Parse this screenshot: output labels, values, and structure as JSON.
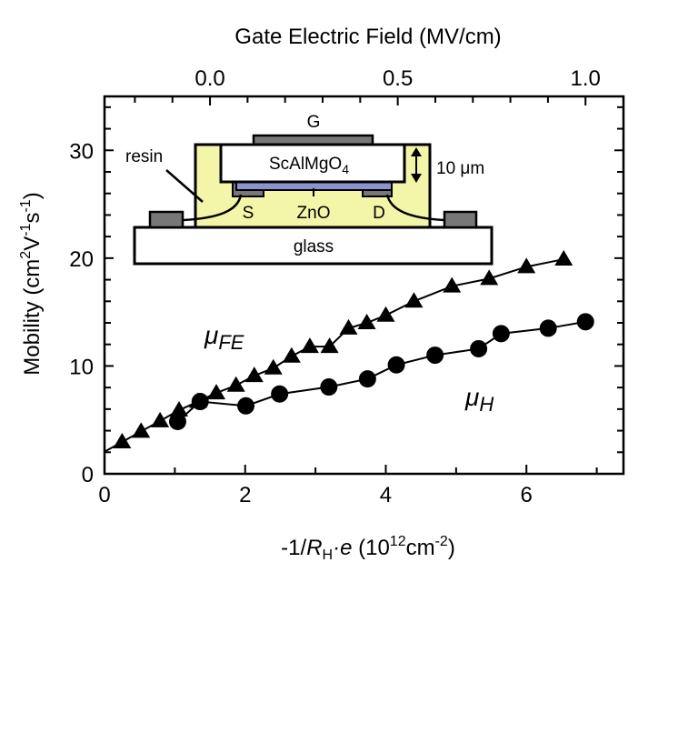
{
  "chart_data": {
    "type": "line",
    "xlabel": {
      "prefix": "-1/",
      "r": "R",
      "r_sub": "H",
      "dot_e": "·e",
      "unit_open": " (10",
      "exp1": "12",
      "unit_mid": "cm",
      "exp2": "-2",
      "unit_close": ")"
    },
    "ylabel": {
      "main": "Mobility (cm",
      "e1": "2",
      "v": "V",
      "e2": "-1",
      "s": "s",
      "e3": "-1",
      "close": ")"
    },
    "top_axis_label": "Gate Electric Field (MV/cm)",
    "xlim": [
      0,
      7.38
    ],
    "ylim": [
      0,
      35
    ],
    "x_ticks": [
      "0",
      "2",
      "4",
      "6"
    ],
    "x_tick_values": [
      0,
      2,
      4,
      6
    ],
    "x_minor_step": 1,
    "y_ticks": [
      "0",
      "10",
      "20",
      "30"
    ],
    "y_tick_values": [
      0,
      10,
      20,
      30
    ],
    "y_minor_step": 2,
    "top_axis": {
      "ticks": [
        "0.0",
        "0.5",
        "1.0"
      ],
      "tick_values": [
        0.0,
        0.5,
        1.0
      ],
      "minor_step": 0.1,
      "bottom_x_at_zero": 1.5,
      "bottom_x_per_unit": 5.34
    },
    "grid": false,
    "legend": "none",
    "series": [
      {
        "name": "μFE",
        "label_mu": "μ",
        "label_sub": "FE",
        "marker": "triangle",
        "line_start": [
          0,
          2.05
        ],
        "x": [
          0.25,
          0.52,
          0.79,
          1.06,
          1.33,
          1.59,
          1.87,
          2.13,
          2.4,
          2.66,
          2.92,
          3.2,
          3.47,
          3.73,
          4.0,
          4.4,
          4.94,
          5.47,
          6.0,
          6.53
        ],
        "y": [
          2.95,
          3.93,
          4.9,
          5.9,
          6.7,
          7.5,
          8.2,
          9.1,
          9.8,
          10.9,
          11.8,
          11.8,
          13.5,
          14.0,
          14.7,
          16.0,
          17.4,
          18.1,
          19.2,
          19.9
        ]
      },
      {
        "name": "μH",
        "label_mu": "μ",
        "label_sub": "H",
        "marker": "circle",
        "x": [
          1.04,
          1.36,
          2.01,
          2.49,
          3.19,
          3.74,
          4.15,
          4.7,
          5.32,
          5.64,
          6.31,
          6.84
        ],
        "y": [
          4.85,
          6.7,
          6.3,
          7.4,
          8.05,
          8.8,
          10.1,
          11.0,
          11.6,
          13.0,
          13.5,
          14.1
        ]
      }
    ]
  },
  "inset": {
    "gate": "G",
    "substrate": "ScAlMgO",
    "substrate_sub": "4",
    "resin": "resin",
    "thickness": "10 μm",
    "source": "S",
    "channel": "ZnO",
    "drain": "D",
    "glass": "glass",
    "colors": {
      "resin": "#f3f5a8",
      "zno": "#8c93cf",
      "electrode": "#777777"
    }
  }
}
